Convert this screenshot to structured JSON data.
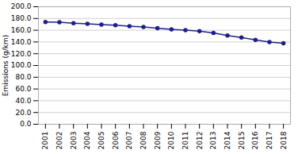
{
  "chart_data": {
    "type": "line",
    "x": [
      2001,
      2002,
      2003,
      2004,
      2005,
      2006,
      2007,
      2008,
      2009,
      2010,
      2011,
      2012,
      2013,
      2014,
      2015,
      2016,
      2017,
      2018
    ],
    "values": [
      174.0,
      173.5,
      172.0,
      171.0,
      169.5,
      168.5,
      167.0,
      165.5,
      163.5,
      161.5,
      160.0,
      158.5,
      155.5,
      151.0,
      147.5,
      143.5,
      140.0,
      138.0
    ],
    "color": "#1f1f8f",
    "marker": "o",
    "ylabel": "Emissions (g/km)",
    "xlim": [
      2000.5,
      2018.5
    ],
    "xticks": [
      2001,
      2002,
      2003,
      2004,
      2005,
      2006,
      2007,
      2008,
      2009,
      2010,
      2011,
      2012,
      2013,
      2014,
      2015,
      2016,
      2017,
      2018
    ],
    "ylim": [
      0,
      200
    ],
    "yticks": [
      {
        "value": 0,
        "label": "0.0"
      },
      {
        "value": 20,
        "label": "20.0"
      },
      {
        "value": 40,
        "label": "40.0"
      },
      {
        "value": 60,
        "label": "60.0"
      },
      {
        "value": 80,
        "label": "80.0"
      },
      {
        "value": 100,
        "label": "100.0"
      },
      {
        "value": 120,
        "label": "120.0"
      },
      {
        "value": 140,
        "label": "140.0"
      },
      {
        "value": 160,
        "label": "160.0"
      },
      {
        "value": 180,
        "label": "180.0"
      },
      {
        "value": 200,
        "label": "200.0"
      }
    ],
    "grid": "y"
  }
}
